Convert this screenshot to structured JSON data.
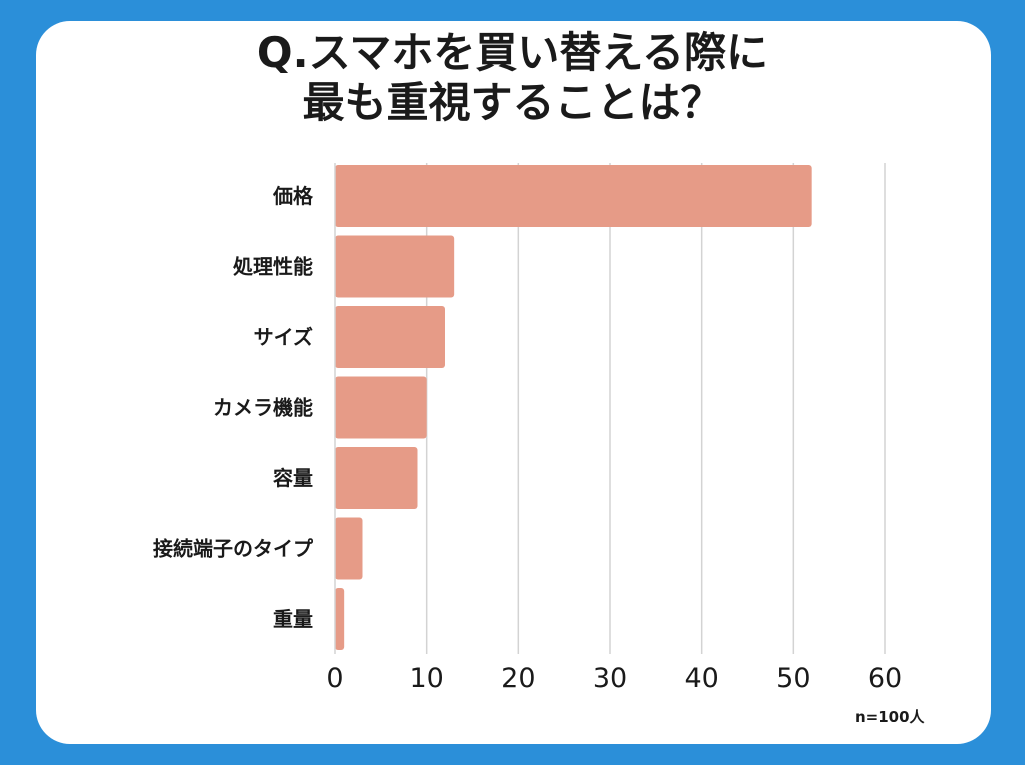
{
  "page": {
    "title_line1": "Q.スマホを買い替える際に",
    "title_line2": "最も重視することは？",
    "note": "n=100人"
  },
  "colors": {
    "background": "#2b8fd9",
    "card": "#ffffff",
    "bar": "#e69b87",
    "grid": "#d3d3d3"
  },
  "chart_data": {
    "type": "bar",
    "orientation": "horizontal",
    "title": "Q.スマホを買い替える際に最も重視することは？",
    "categories": [
      "価格",
      "処理性能",
      "サイズ",
      "カメラ機能",
      "容量",
      "接続端子のタイプ",
      "重量"
    ],
    "values": [
      52,
      13,
      12,
      10,
      9,
      3,
      1
    ],
    "xlim": [
      0,
      60
    ],
    "xticks": [
      "0",
      "10",
      "20",
      "30",
      "40",
      "50",
      "60"
    ],
    "grid": "vertical",
    "annotation": "n=100人"
  }
}
